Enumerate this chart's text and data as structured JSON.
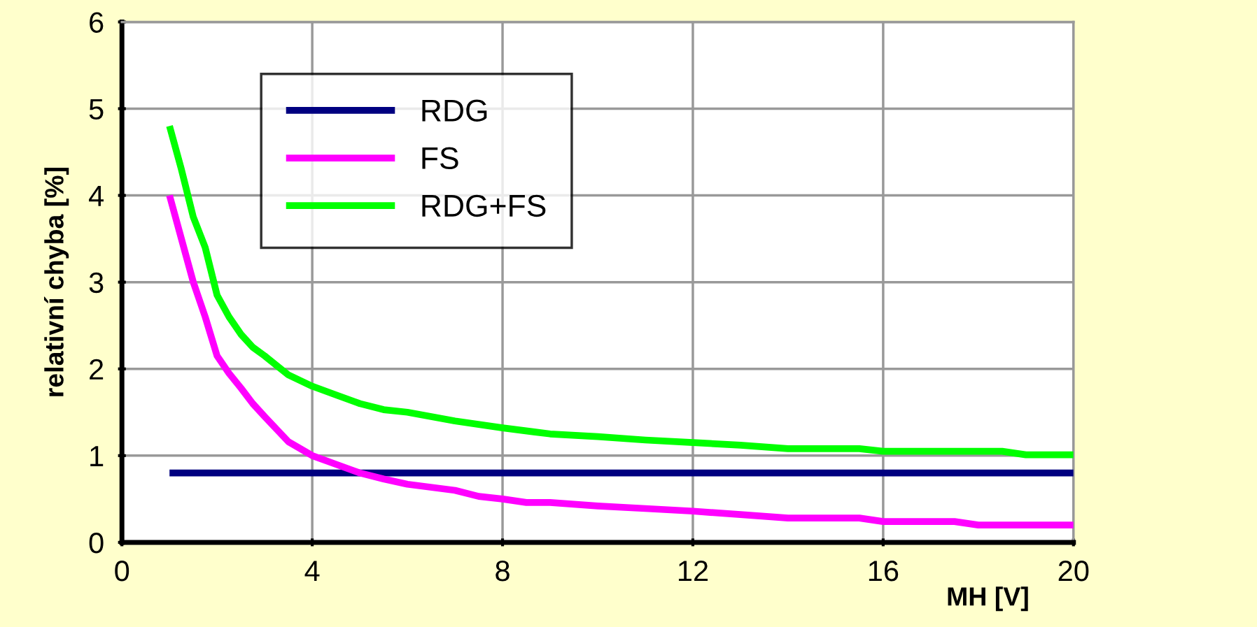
{
  "chart_data": {
    "type": "line",
    "xlabel": "MH [V]",
    "ylabel": "relativní chyba [%]",
    "xlim": [
      0,
      20
    ],
    "ylim": [
      0,
      6
    ],
    "xticks": [
      0,
      4,
      8,
      12,
      16,
      20
    ],
    "yticks": [
      0,
      1,
      2,
      3,
      4,
      5,
      6
    ],
    "grid": true,
    "legend": "top left",
    "marker": "none",
    "line_style": "solid",
    "series": [
      {
        "name": "RDG",
        "color": "#000080",
        "x": [
          1,
          20
        ],
        "values": [
          0.8,
          0.8
        ]
      },
      {
        "name": "FS",
        "color": "#ff00ff",
        "x": [
          1,
          1.25,
          1.5,
          1.75,
          2,
          2.25,
          2.5,
          2.75,
          3,
          3.5,
          4,
          4.5,
          5,
          5.5,
          6,
          7,
          7.5,
          8,
          8.5,
          9,
          10,
          11,
          12,
          13,
          14,
          15,
          15.5,
          16,
          17,
          17.5,
          18,
          19,
          20
        ],
        "values": [
          4.0,
          3.5,
          3.0,
          2.6,
          2.15,
          1.95,
          1.78,
          1.6,
          1.45,
          1.16,
          1.0,
          0.9,
          0.8,
          0.73,
          0.67,
          0.6,
          0.53,
          0.5,
          0.46,
          0.46,
          0.42,
          0.39,
          0.36,
          0.32,
          0.28,
          0.28,
          0.28,
          0.24,
          0.24,
          0.24,
          0.2,
          0.2,
          0.2
        ]
      },
      {
        "name": "RDG+FS",
        "color": "#00ff00",
        "x": [
          1,
          1.25,
          1.5,
          1.75,
          2,
          2.25,
          2.5,
          2.75,
          3,
          3.5,
          4,
          4.5,
          5,
          5.5,
          6,
          7,
          8,
          9,
          10,
          11,
          12,
          13,
          14,
          15,
          15.5,
          16,
          17,
          18,
          18.5,
          19,
          20
        ],
        "values": [
          4.8,
          4.3,
          3.75,
          3.4,
          2.85,
          2.6,
          2.4,
          2.25,
          2.15,
          1.93,
          1.8,
          1.7,
          1.6,
          1.53,
          1.5,
          1.4,
          1.32,
          1.25,
          1.22,
          1.18,
          1.15,
          1.12,
          1.08,
          1.08,
          1.08,
          1.05,
          1.05,
          1.05,
          1.05,
          1.01,
          1.01
        ]
      }
    ]
  }
}
